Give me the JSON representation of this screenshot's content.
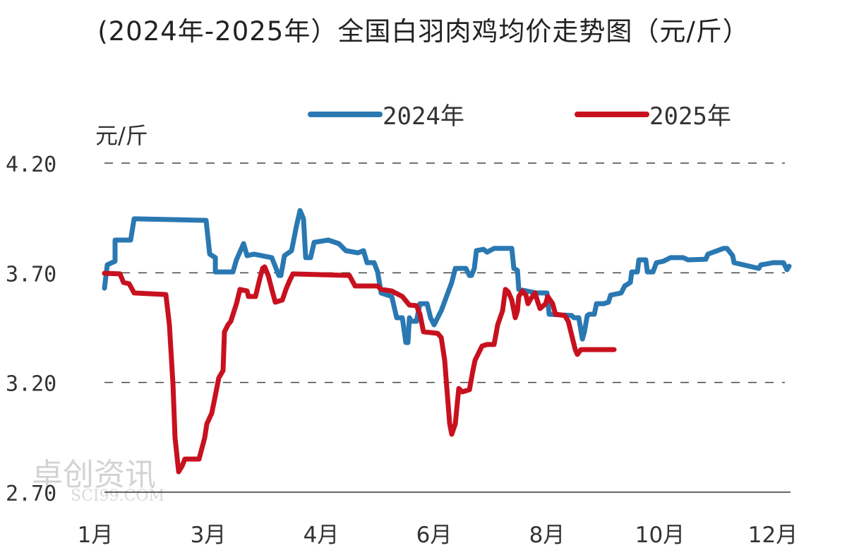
{
  "chart_data": {
    "type": "line",
    "title": "(2024年-2025年）全国白羽肉鸡均价走势图（元/斤）",
    "ylabel": "元/斤",
    "xlabel": "",
    "ylim": [
      2.7,
      4.2
    ],
    "yticks": [
      "4.20",
      "3.70",
      "3.20",
      "2.70"
    ],
    "ytick_values": [
      4.2,
      3.7,
      3.2,
      2.7
    ],
    "x_tick_labels": [
      "1月",
      "3月",
      "4月",
      "6月",
      "8月",
      "10月",
      "12月"
    ],
    "x_note": "x values are positions along the evenly spaced tick labels (0 = 1月 … 6 = 12月)",
    "grid": "dashed horizontal",
    "legend_position": "top",
    "series": [
      {
        "name": "2024年",
        "color": "#2a78b2",
        "points": [
          [
            0.081,
            3.63
          ],
          [
            0.106,
            3.736
          ],
          [
            0.175,
            3.753
          ],
          [
            0.175,
            3.849
          ],
          [
            0.313,
            3.849
          ],
          [
            0.344,
            3.946
          ],
          [
            0.981,
            3.939
          ],
          [
            1.013,
            3.785
          ],
          [
            1.063,
            3.769
          ],
          [
            1.063,
            3.704
          ],
          [
            1.219,
            3.704
          ],
          [
            1.25,
            3.759
          ],
          [
            1.313,
            3.833
          ],
          [
            1.344,
            3.778
          ],
          [
            1.406,
            3.785
          ],
          [
            1.563,
            3.769
          ],
          [
            1.625,
            3.688
          ],
          [
            1.644,
            3.688
          ],
          [
            1.675,
            3.778
          ],
          [
            1.738,
            3.801
          ],
          [
            1.781,
            3.913
          ],
          [
            1.813,
            3.984
          ],
          [
            1.844,
            3.946
          ],
          [
            1.863,
            3.769
          ],
          [
            1.906,
            3.769
          ],
          [
            1.938,
            3.839
          ],
          [
            2.063,
            3.849
          ],
          [
            2.156,
            3.833
          ],
          [
            2.219,
            3.801
          ],
          [
            2.325,
            3.791
          ],
          [
            2.375,
            3.801
          ],
          [
            2.406,
            3.746
          ],
          [
            2.469,
            3.746
          ],
          [
            2.5,
            3.704
          ],
          [
            2.531,
            3.608
          ],
          [
            2.625,
            3.592
          ],
          [
            2.669,
            3.495
          ],
          [
            2.719,
            3.495
          ],
          [
            2.75,
            3.382
          ],
          [
            2.769,
            3.382
          ],
          [
            2.781,
            3.495
          ],
          [
            2.8,
            3.479
          ],
          [
            2.844,
            3.479
          ],
          [
            2.875,
            3.559
          ],
          [
            2.938,
            3.559
          ],
          [
            2.969,
            3.495
          ],
          [
            3.0,
            3.463
          ],
          [
            3.063,
            3.527
          ],
          [
            3.156,
            3.656
          ],
          [
            3.188,
            3.72
          ],
          [
            3.281,
            3.72
          ],
          [
            3.313,
            3.688
          ],
          [
            3.331,
            3.688
          ],
          [
            3.356,
            3.72
          ],
          [
            3.375,
            3.801
          ],
          [
            3.438,
            3.807
          ],
          [
            3.469,
            3.794
          ],
          [
            3.531,
            3.811
          ],
          [
            3.688,
            3.811
          ],
          [
            3.706,
            3.72
          ],
          [
            3.738,
            3.711
          ],
          [
            3.75,
            3.624
          ],
          [
            3.906,
            3.608
          ],
          [
            4.0,
            3.608
          ],
          [
            4.019,
            3.511
          ],
          [
            4.219,
            3.505
          ],
          [
            4.238,
            3.495
          ],
          [
            4.281,
            3.495
          ],
          [
            4.313,
            3.398
          ],
          [
            4.331,
            3.431
          ],
          [
            4.356,
            3.505
          ],
          [
            4.375,
            3.511
          ],
          [
            4.419,
            3.511
          ],
          [
            4.438,
            3.559
          ],
          [
            4.5,
            3.559
          ],
          [
            4.544,
            3.566
          ],
          [
            4.563,
            3.598
          ],
          [
            4.656,
            3.608
          ],
          [
            4.688,
            3.64
          ],
          [
            4.738,
            3.656
          ],
          [
            4.75,
            3.704
          ],
          [
            4.8,
            3.704
          ],
          [
            4.813,
            3.759
          ],
          [
            4.875,
            3.759
          ],
          [
            4.888,
            3.704
          ],
          [
            4.938,
            3.704
          ],
          [
            4.969,
            3.746
          ],
          [
            5.031,
            3.753
          ],
          [
            5.094,
            3.769
          ],
          [
            5.206,
            3.769
          ],
          [
            5.25,
            3.759
          ],
          [
            5.406,
            3.762
          ],
          [
            5.425,
            3.785
          ],
          [
            5.563,
            3.811
          ],
          [
            5.594,
            3.811
          ],
          [
            5.644,
            3.778
          ],
          [
            5.656,
            3.746
          ],
          [
            5.875,
            3.72
          ],
          [
            5.894,
            3.736
          ],
          [
            5.938,
            3.74
          ],
          [
            6.0,
            3.746
          ],
          [
            6.094,
            3.746
          ],
          [
            6.125,
            3.714
          ],
          [
            6.144,
            3.73
          ]
        ]
      },
      {
        "name": "2025年",
        "color": "#c8111f",
        "points": [
          [
            0.081,
            3.698
          ],
          [
            0.219,
            3.695
          ],
          [
            0.25,
            3.656
          ],
          [
            0.3,
            3.65
          ],
          [
            0.344,
            3.608
          ],
          [
            0.625,
            3.601
          ],
          [
            0.656,
            3.463
          ],
          [
            0.688,
            3.189
          ],
          [
            0.706,
            2.948
          ],
          [
            0.738,
            2.793
          ],
          [
            0.769,
            2.819
          ],
          [
            0.794,
            2.851
          ],
          [
            0.919,
            2.851
          ],
          [
            0.969,
            2.948
          ],
          [
            0.988,
            3.012
          ],
          [
            1.031,
            3.06
          ],
          [
            1.063,
            3.141
          ],
          [
            1.094,
            3.221
          ],
          [
            1.131,
            3.254
          ],
          [
            1.144,
            3.431
          ],
          [
            1.175,
            3.463
          ],
          [
            1.2,
            3.479
          ],
          [
            1.25,
            3.559
          ],
          [
            1.281,
            3.624
          ],
          [
            1.344,
            3.617
          ],
          [
            1.356,
            3.592
          ],
          [
            1.419,
            3.592
          ],
          [
            1.456,
            3.672
          ],
          [
            1.481,
            3.72
          ],
          [
            1.5,
            3.727
          ],
          [
            1.531,
            3.688
          ],
          [
            1.563,
            3.624
          ],
          [
            1.594,
            3.566
          ],
          [
            1.656,
            3.576
          ],
          [
            1.688,
            3.624
          ],
          [
            1.719,
            3.662
          ],
          [
            1.75,
            3.695
          ],
          [
            2.25,
            3.688
          ],
          [
            2.3,
            3.64
          ],
          [
            2.5,
            3.64
          ],
          [
            2.531,
            3.624
          ],
          [
            2.625,
            3.617
          ],
          [
            2.719,
            3.592
          ],
          [
            2.781,
            3.553
          ],
          [
            2.844,
            3.55
          ],
          [
            2.875,
            3.511
          ],
          [
            2.906,
            3.431
          ],
          [
            3.031,
            3.424
          ],
          [
            3.063,
            3.405
          ],
          [
            3.094,
            3.302
          ],
          [
            3.113,
            3.173
          ],
          [
            3.138,
            3.012
          ],
          [
            3.156,
            2.964
          ],
          [
            3.188,
            3.012
          ],
          [
            3.206,
            3.109
          ],
          [
            3.219,
            3.173
          ],
          [
            3.25,
            3.157
          ],
          [
            3.313,
            3.167
          ],
          [
            3.344,
            3.254
          ],
          [
            3.363,
            3.302
          ],
          [
            3.425,
            3.366
          ],
          [
            3.469,
            3.373
          ],
          [
            3.531,
            3.373
          ],
          [
            3.563,
            3.463
          ],
          [
            3.606,
            3.527
          ],
          [
            3.631,
            3.624
          ],
          [
            3.656,
            3.614
          ],
          [
            3.688,
            3.576
          ],
          [
            3.719,
            3.495
          ],
          [
            3.738,
            3.527
          ],
          [
            3.75,
            3.592
          ],
          [
            3.781,
            3.617
          ],
          [
            3.813,
            3.598
          ],
          [
            3.831,
            3.559
          ],
          [
            3.856,
            3.582
          ],
          [
            3.894,
            3.608
          ],
          [
            3.919,
            3.566
          ],
          [
            3.938,
            3.537
          ],
          [
            3.988,
            3.559
          ],
          [
            4.006,
            3.592
          ],
          [
            4.05,
            3.559
          ],
          [
            4.075,
            3.511
          ],
          [
            4.156,
            3.505
          ],
          [
            4.188,
            3.479
          ],
          [
            4.25,
            3.35
          ],
          [
            4.269,
            3.328
          ],
          [
            4.3,
            3.35
          ],
          [
            4.594,
            3.35
          ]
        ]
      }
    ]
  },
  "watermark": {
    "name": "卓创资讯",
    "url": "SCI99.COM"
  }
}
